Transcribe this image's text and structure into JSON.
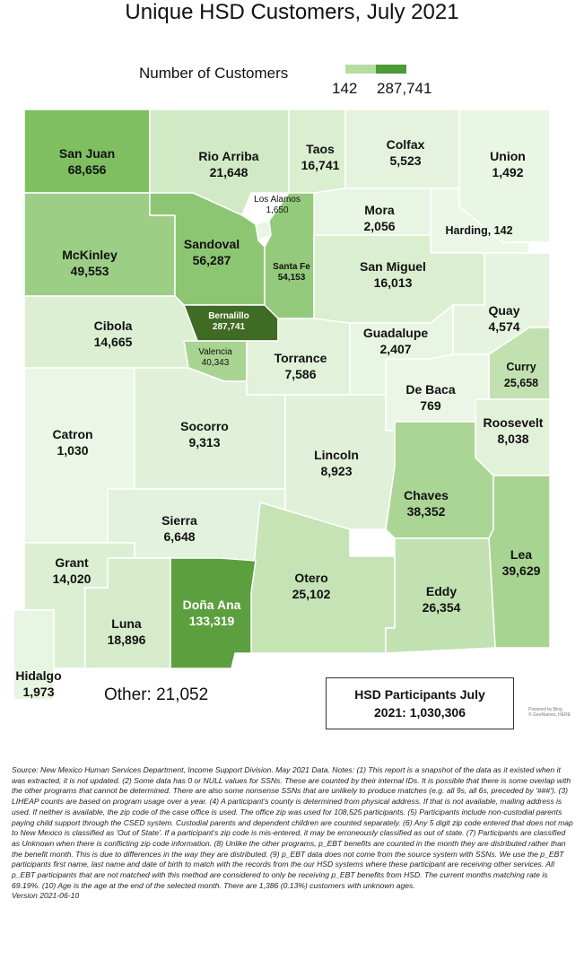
{
  "title": "Unique HSD Customers, July 2021",
  "legend": {
    "title": "Number of Customers",
    "min": "142",
    "max": "287,741",
    "color_min": "#b7dca0",
    "color_max": "#4e9a35"
  },
  "counties": [
    {
      "name": "San Juan",
      "value": "68,656",
      "color": "#7fbf62"
    },
    {
      "name": "Rio Arriba",
      "value": "21,648",
      "color": "#d2e9c6"
    },
    {
      "name": "Taos",
      "value": "16,741",
      "color": "#daeed0"
    },
    {
      "name": "Colfax",
      "value": "5,523",
      "color": "#e5f3de"
    },
    {
      "name": "Union",
      "value": "1,492",
      "color": "#eaf6e4"
    },
    {
      "name": "Los Alamos",
      "value": "1,650",
      "color": "#eaf6e4"
    },
    {
      "name": "Mora",
      "value": "2,056",
      "color": "#e9f5e3"
    },
    {
      "name": "Harding",
      "value": "142",
      "color": "#edf7e8"
    },
    {
      "name": "McKinley",
      "value": "49,553",
      "color": "#9dce86"
    },
    {
      "name": "Sandoval",
      "value": "56,287",
      "color": "#8dc672"
    },
    {
      "name": "Santa Fe",
      "value": "54,153",
      "color": "#94ca7b"
    },
    {
      "name": "San Miguel",
      "value": "16,013",
      "color": "#daeed0"
    },
    {
      "name": "Bernalillo",
      "value": "287,741",
      "color": "#3f6b24"
    },
    {
      "name": "Cibola",
      "value": "14,665",
      "color": "#dcefd3"
    },
    {
      "name": "Valencia",
      "value": "40,343",
      "color": "#a8d492"
    },
    {
      "name": "Quay",
      "value": "4,574",
      "color": "#e6f4df"
    },
    {
      "name": "Guadalupe",
      "value": "2,407",
      "color": "#e8f5e2"
    },
    {
      "name": "Torrance",
      "value": "7,586",
      "color": "#e2f1da"
    },
    {
      "name": "Curry",
      "value": "25,658",
      "color": "#c2e1b1"
    },
    {
      "name": "De Baca",
      "value": "769",
      "color": "#ecf6e7"
    },
    {
      "name": "Roosevelt",
      "value": "8,038",
      "color": "#e2f1da"
    },
    {
      "name": "Catron",
      "value": "1,030",
      "color": "#ebf6e6"
    },
    {
      "name": "Socorro",
      "value": "9,313",
      "color": "#e1f0d8"
    },
    {
      "name": "Lincoln",
      "value": "8,923",
      "color": "#e1f0d8"
    },
    {
      "name": "Chaves",
      "value": "38,352",
      "color": "#abd595"
    },
    {
      "name": "Sierra",
      "value": "6,648",
      "color": "#e3f2dc"
    },
    {
      "name": "Grant",
      "value": "14,020",
      "color": "#dcefd3"
    },
    {
      "name": "Otero",
      "value": "25,102",
      "color": "#c5e3b5"
    },
    {
      "name": "Lea",
      "value": "39,629",
      "color": "#a8d492"
    },
    {
      "name": "Luna",
      "value": "18,896",
      "color": "#d5ebca"
    },
    {
      "name": "Doña Ana",
      "value": "133,319",
      "color": "#5c9f3e"
    },
    {
      "name": "Eddy",
      "value": "26,354",
      "color": "#c2e1b1"
    },
    {
      "name": "Hidalgo",
      "value": "1,973",
      "color": "#e9f5e3"
    }
  ],
  "other": "Other: 21,052",
  "participants": {
    "line1": "HSD Participants July",
    "line2": "2021: 1,030,306"
  },
  "credit": {
    "line1": "Powered by Bing",
    "line2": "© GeoNames, HERE"
  },
  "notes": "Source:  New Mexico Human Services Department, Income Support Division.  May 2021 Data. Notes: (1) This report is a snapshot of the data as it existed when it was extracted, it is not updated. (2) Some data has 0 or NULL values for SSNs.  These are counted by their internal IDs.  It is possible that there is some overlap with the other programs that cannot be determined. There are also some nonsense SSNs that are unlikely to produce matches (e.g. all 9s, all 6s, preceded by '###'). (3) LIHEAP counts are based on program usage over a year. (4) A participant's county is determined from physical address.  If that is not available, mailing address is used.  If neither is available, the zip code of the case office is used.  The office zip was used for 108,525 participants. (5) Participants include non-custodial parents paying child support through the CSED system. Custodial parents and dependent children are counted separately. (6) Any 5 digit zip code entered that does not map to New Mexico is classified as 'Out of State'.  If a participant's zip code is mis-entered, it may be erroneously classified as out of state. (7) Participants are classified as Unknown when there is conflicting zip code information.  (8) Unlike the other programs, p_EBT benefits are counted in the month they are distributed rather than the benefit month.  This is due to differences in the way they are distributed.  (9) p_EBT data does not come from the source system with SSNs. We use the p_EBT participants first name, last name and date of birth to match with the records from the our HSD systems where these participant are receiving other services.  All p_EBT participants that are not matched with this method are considered to only be receiving p_EBT benefits from HSD.  The current months matching rate is 69.19%.  (10) Age is the age at the end of the selected month.  There are 1,386 (0.13%) customers with unknown ages.",
  "version": "Version 2021-06-10"
}
